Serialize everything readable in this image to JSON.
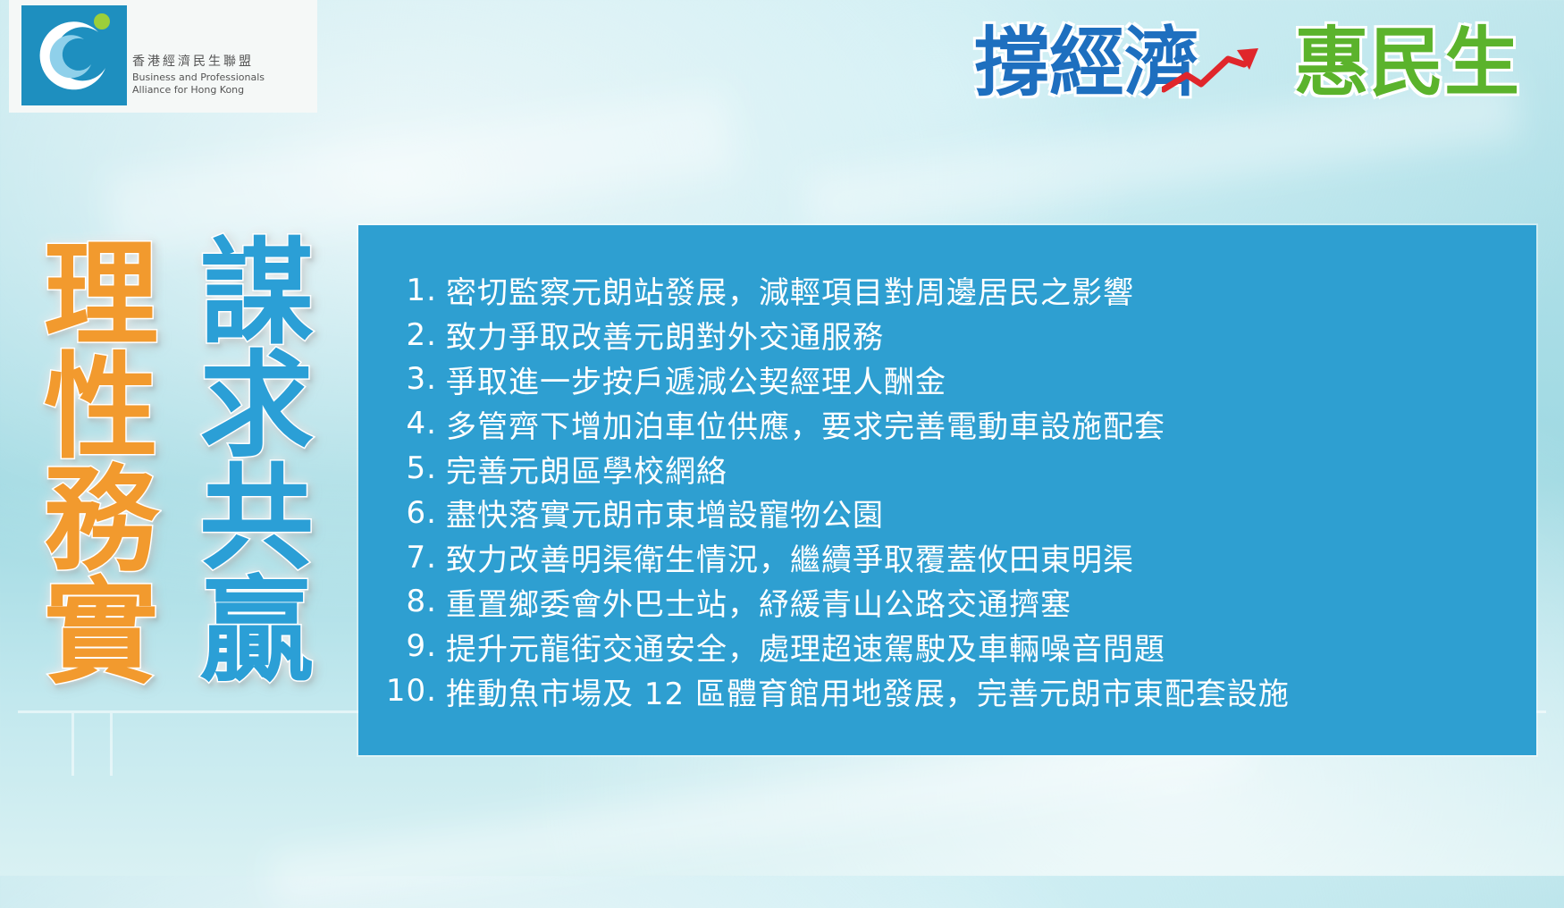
{
  "logo": {
    "icon": "bpa-logo-mark",
    "name_zh": "香港經濟民生聯盟",
    "name_en_line1": "Business and Professionals",
    "name_en_line2": "Alliance for Hong Kong",
    "color": "#1e8fbf"
  },
  "slogan": {
    "part1": "撐經濟",
    "part2": "惠民生",
    "part1_color": "#1e6fbf",
    "part2_color": "#5bb32c",
    "arrow_icon": "trend-up-arrow-icon"
  },
  "titles": {
    "left": "理性務實",
    "right": "謀求共贏",
    "left_color": "#f29a2e",
    "right_color": "#2b9fd6"
  },
  "panel": {
    "color": "#2e9fd1",
    "items": [
      {
        "num": "1.",
        "text": "密切監察元朗站發展，減輕項目對周邊居民之影響"
      },
      {
        "num": "2.",
        "text": "致力爭取改善元朗對外交通服務"
      },
      {
        "num": "3.",
        "text": "爭取進一步按戶遞減公契經理人酬金"
      },
      {
        "num": "4.",
        "text": "多管齊下增加泊車位供應，要求完善電動車設施配套"
      },
      {
        "num": "5.",
        "text": "完善元朗區學校網絡"
      },
      {
        "num": "6.",
        "text": "盡快落實元朗市東增設寵物公園"
      },
      {
        "num": "7.",
        "text": "致力改善明渠衛生情況，繼續爭取覆蓋攸田東明渠"
      },
      {
        "num": "8.",
        "text": "重置鄉委會外巴士站，紓緩青山公路交通擠塞"
      },
      {
        "num": "9.",
        "text": "提升元龍街交通安全，處理超速駕駛及車輛噪音問題"
      },
      {
        "num": "10.",
        "text": "推動魚市場及 12 區體育館用地發展，完善元朗市東配套設施"
      }
    ]
  }
}
